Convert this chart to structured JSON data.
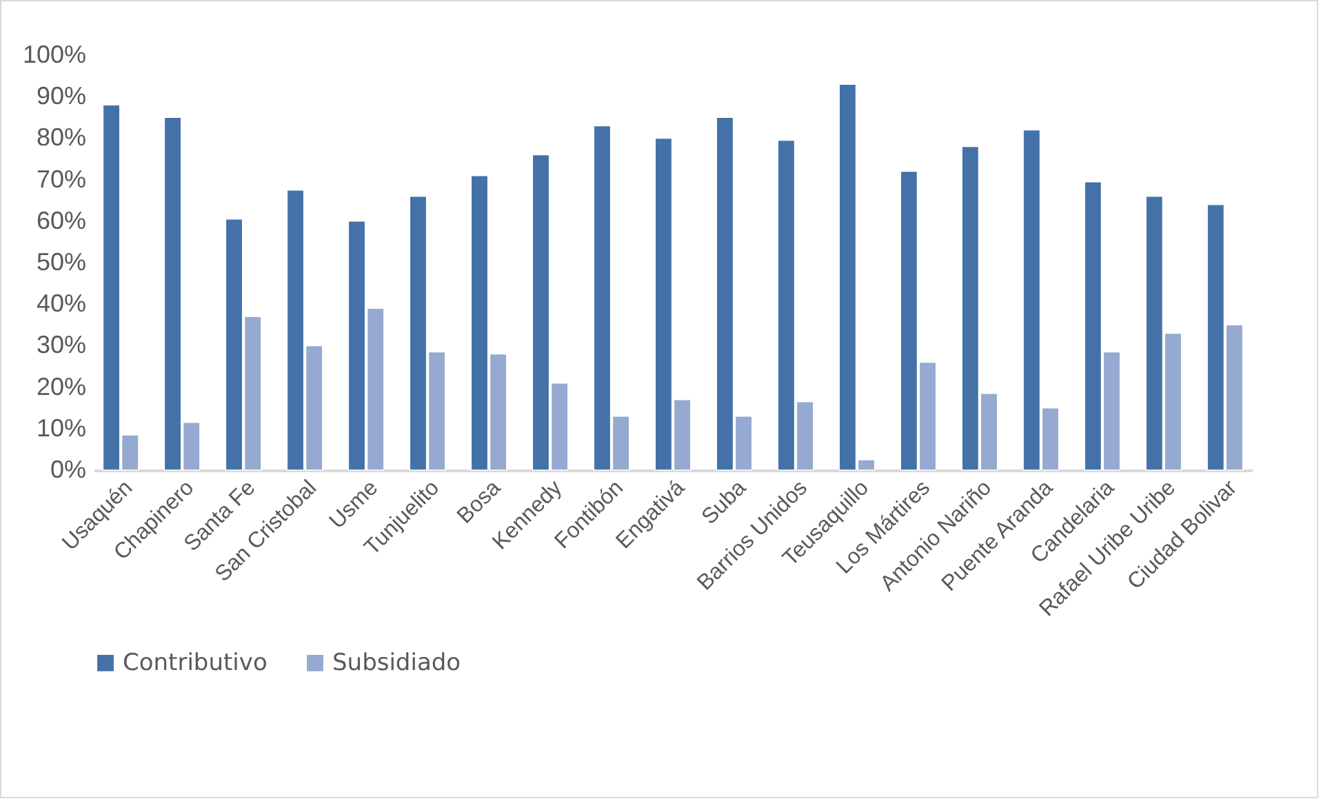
{
  "chart_data": {
    "type": "bar",
    "categories": [
      "Usaquén",
      "Chapinero",
      "Santa Fe",
      "San Cristobal",
      "Usme",
      "Tunjuelito",
      "Bosa",
      "Kennedy",
      "Fontibón",
      "Engativá",
      "Suba",
      "Barrios Unidos",
      "Teusaquillo",
      "Los Mártires",
      "Antonio Nariño",
      "Puente Aranda",
      "Candelaria",
      "Rafael Uribe Uribe",
      "Ciudad Bolivar"
    ],
    "series": [
      {
        "name": "Contributivo",
        "color": "#4472a8",
        "values": [
          88,
          85,
          60.5,
          67.5,
          60,
          66,
          71,
          76,
          83,
          80,
          85,
          79.5,
          93,
          72,
          78,
          82,
          69.5,
          66,
          64
        ]
      },
      {
        "name": "Subsidiado",
        "color": "#95a9d1",
        "values": [
          8.5,
          11.5,
          37,
          30,
          39,
          28.5,
          28,
          21,
          13,
          17,
          13,
          16.5,
          2.5,
          26,
          18.5,
          15,
          28.5,
          33,
          35
        ]
      }
    ],
    "ylim": [
      0,
      100
    ],
    "yticks": [
      {
        "value": 0,
        "label": "0%"
      },
      {
        "value": 10,
        "label": "10%"
      },
      {
        "value": 20,
        "label": "20%"
      },
      {
        "value": 30,
        "label": "30%"
      },
      {
        "value": 40,
        "label": "40%"
      },
      {
        "value": 50,
        "label": "50%"
      },
      {
        "value": 60,
        "label": "60%"
      },
      {
        "value": 70,
        "label": "70%"
      },
      {
        "value": 80,
        "label": "80%"
      },
      {
        "value": 90,
        "label": "90%"
      },
      {
        "value": 100,
        "label": "100%"
      }
    ],
    "grid": false,
    "legend": "bottom"
  }
}
